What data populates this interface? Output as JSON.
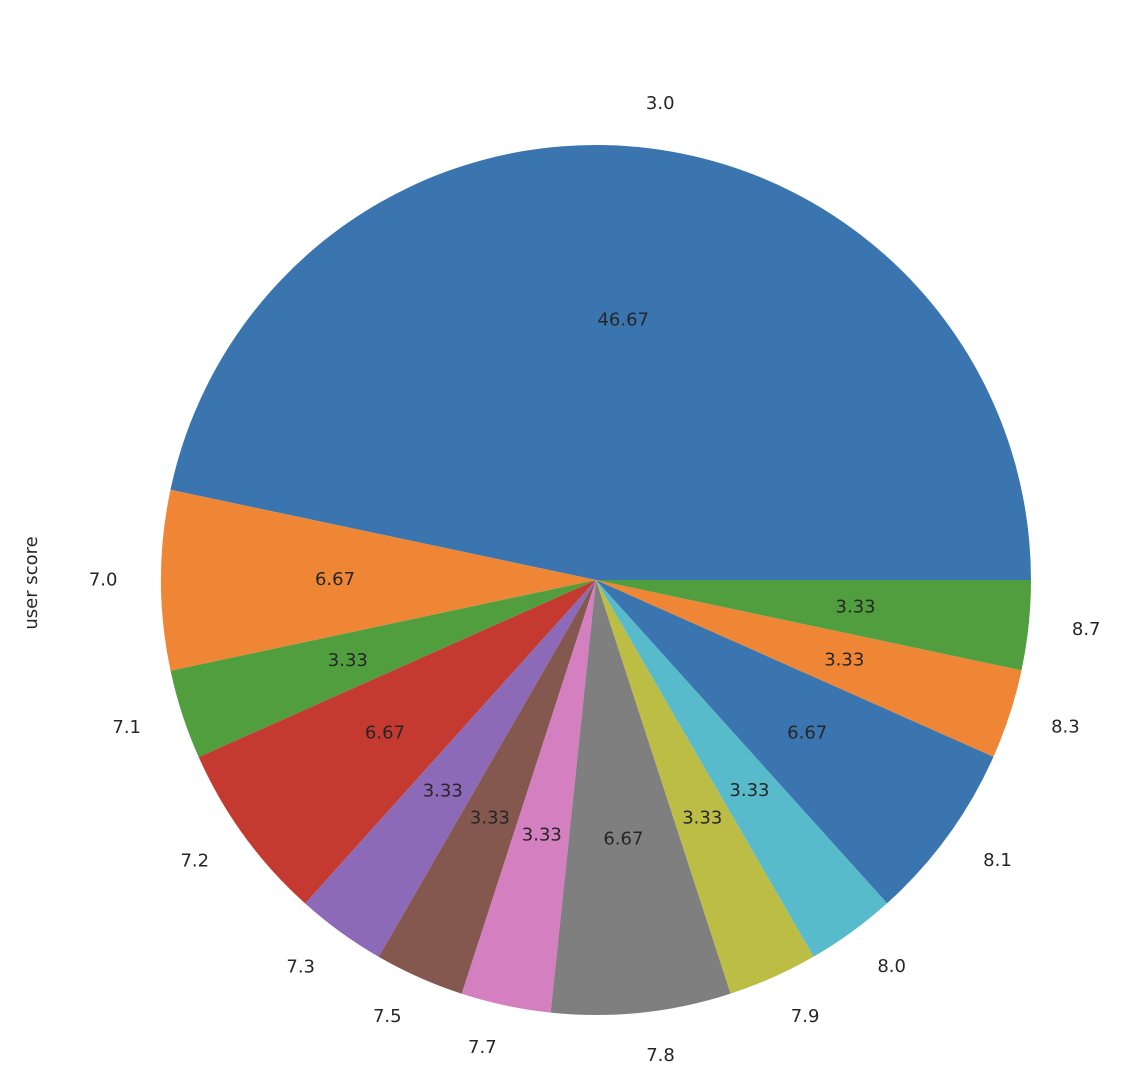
{
  "chart_data": {
    "type": "pie",
    "y_label": "user score",
    "categories": [
      "3.0",
      "7.0",
      "7.1",
      "7.2",
      "7.3",
      "7.5",
      "7.7",
      "7.8",
      "7.9",
      "8.0",
      "8.1",
      "8.3",
      "8.7"
    ],
    "values": [
      46.67,
      6.67,
      3.33,
      6.67,
      3.33,
      3.33,
      3.33,
      6.67,
      3.33,
      3.33,
      6.67,
      3.33,
      3.33
    ],
    "colors": [
      "#3a75af",
      "#ee8636",
      "#519e3e",
      "#c43a31",
      "#8d6ab8",
      "#84584e",
      "#d47fbf",
      "#7f7f7f",
      "#bcbd45",
      "#57bbcc",
      "#3a75af",
      "#ee8636",
      "#519e3e"
    ]
  }
}
